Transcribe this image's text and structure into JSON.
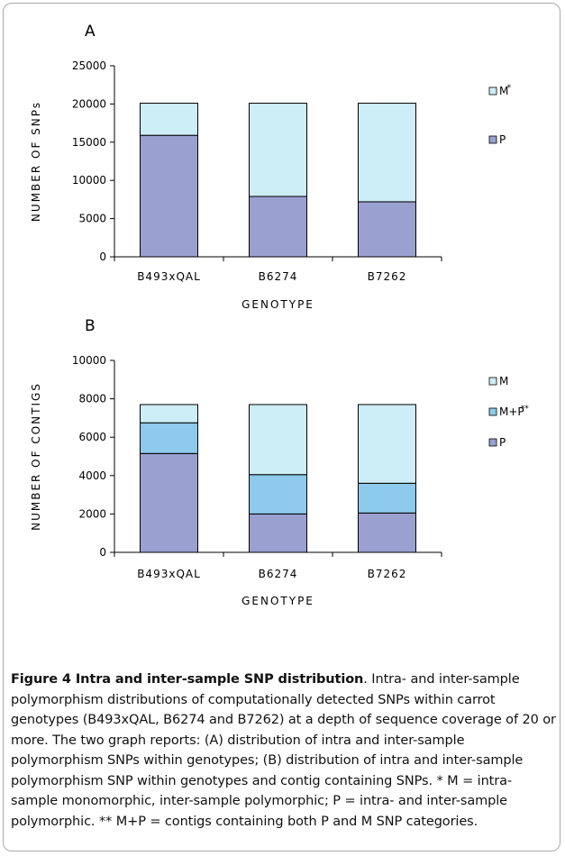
{
  "chart_data": [
    {
      "type": "bar",
      "stacked": true,
      "panel_label": "A",
      "categories": [
        "B493xQAL",
        "B6274",
        "B7262"
      ],
      "series": [
        {
          "name": "P",
          "values": [
            15900,
            7900,
            7200
          ],
          "color": "#9aa0d0"
        },
        {
          "name": "M",
          "name_suffix": "*",
          "values": [
            4200,
            12200,
            12900
          ],
          "color": "#cdeef6"
        }
      ],
      "xlabel": "GENOTYPE",
      "ylabel": "NUMBER OF SNPs",
      "ylim": [
        0,
        25000
      ],
      "yticks": [
        0,
        5000,
        10000,
        15000,
        20000,
        25000
      ],
      "grid": false,
      "legend_position": "right"
    },
    {
      "type": "bar",
      "stacked": true,
      "panel_label": "B",
      "categories": [
        "B493xQAL",
        "B6274",
        "B7262"
      ],
      "series": [
        {
          "name": "P",
          "values": [
            5150,
            2000,
            2050
          ],
          "color": "#9aa0d0"
        },
        {
          "name": "M+P",
          "name_suffix": "**",
          "values": [
            1600,
            2050,
            1550
          ],
          "color": "#8dcaeb"
        },
        {
          "name": "M",
          "name_suffix": "",
          "values": [
            950,
            3650,
            4100
          ],
          "color": "#cdeef6"
        }
      ],
      "xlabel": "GENOTYPE",
      "ylabel": "NUMBER OF CONTIGS",
      "ylim": [
        0,
        10000
      ],
      "yticks": [
        0,
        2000,
        4000,
        6000,
        8000,
        10000
      ],
      "grid": false,
      "legend_position": "right"
    }
  ],
  "caption": {
    "title": "Figure 4 Intra and inter-sample SNP distribution",
    "body": ". Intra- and inter-sample polymorphism distributions of computationally detected SNPs within carrot genotypes (B493xQAL, B6274 and B7262) at a depth of sequence coverage of 20 or more. The two graph reports: (A) distribution of intra and inter-sample polymorphism SNPs within genotypes; (B) distribution of intra and inter-sample polymorphism SNP within genotypes and contig containing SNPs. * M = intra-sample monomorphic, inter-sample polymorphic; P = intra- and inter-sample polymorphic. ** M+P = contigs containing both P and M SNP categories."
  }
}
